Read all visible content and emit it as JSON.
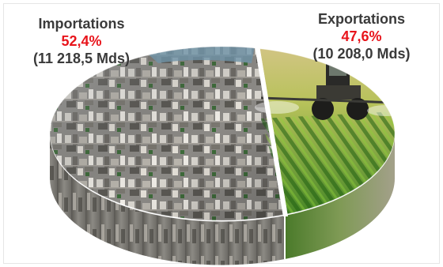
{
  "chart_data": {
    "type": "pie",
    "categories": [
      "Importations",
      "Exportations"
    ],
    "values": [
      52.4,
      47.6
    ],
    "percent_labels": [
      "52,4%",
      "47,6%"
    ],
    "amount_labels": [
      "(11 218,5 Mds)",
      "(10 208,0 Mds)"
    ],
    "style": "3d-photo-fill",
    "colors": {
      "label_text": "#3a3a3a",
      "percent_text": "#e8141b"
    },
    "slice_images": [
      "city-aerial-photo",
      "tractor-field-photo"
    ]
  }
}
